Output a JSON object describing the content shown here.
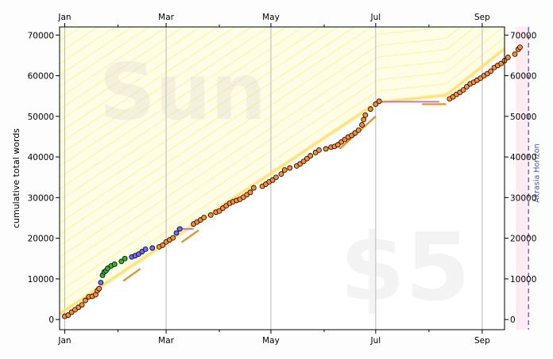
{
  "chart_data": {
    "type": "scatter",
    "ylabel": "cumulative total words",
    "xlabel": "",
    "ylim": [
      -2500,
      72000
    ],
    "x_day_range": [
      -3,
      256
    ],
    "month_ticks": [
      {
        "label": "Jan",
        "day": 0
      },
      {
        "label": "Mar",
        "day": 59
      },
      {
        "label": "May",
        "day": 120
      },
      {
        "label": "Jul",
        "day": 181
      },
      {
        "label": "Sep",
        "day": 243
      }
    ],
    "minor_month_days": [
      31,
      90,
      151,
      212
    ],
    "y_ticks": [
      0,
      10000,
      20000,
      30000,
      40000,
      50000,
      60000,
      70000
    ],
    "grid": "vertical-major",
    "watermark_goal": "Sun",
    "watermark_pledge": "$5",
    "horizon_label": "Akrasia Horizon",
    "horizon_day": 270,
    "today_day": 263,
    "road": [
      [
        0,
        2200
      ],
      [
        182,
        53400
      ],
      [
        222,
        55200
      ],
      [
        272,
        72000
      ]
    ],
    "datapoints": [
      [
        0,
        800
      ],
      [
        2,
        1100
      ],
      [
        4,
        1800
      ],
      [
        6,
        2400
      ],
      [
        8,
        3000
      ],
      [
        10,
        3600
      ],
      [
        12,
        4700
      ],
      [
        14,
        5600
      ],
      [
        16,
        5700
      ],
      [
        18,
        6100
      ],
      [
        19,
        7100
      ],
      [
        20,
        7600
      ],
      [
        21,
        9100
      ],
      [
        22,
        10900
      ],
      [
        23,
        11700
      ],
      [
        24,
        12000
      ],
      [
        25,
        12600
      ],
      [
        27,
        13200
      ],
      [
        29,
        13600
      ],
      [
        33,
        14300
      ],
      [
        35,
        15000
      ],
      [
        39,
        15400
      ],
      [
        41,
        15700
      ],
      [
        43,
        16100
      ],
      [
        45,
        16700
      ],
      [
        47,
        17300
      ],
      [
        51,
        17600
      ],
      [
        55,
        17900
      ],
      [
        57,
        18300
      ],
      [
        59,
        19100
      ],
      [
        61,
        19600
      ],
      [
        63,
        20100
      ],
      [
        65,
        21300
      ],
      [
        67,
        22300
      ],
      [
        75,
        23500
      ],
      [
        77,
        24000
      ],
      [
        79,
        24500
      ],
      [
        81,
        25100
      ],
      [
        85,
        25700
      ],
      [
        88,
        26400
      ],
      [
        90,
        26700
      ],
      [
        92,
        27400
      ],
      [
        94,
        28000
      ],
      [
        96,
        28600
      ],
      [
        98,
        29000
      ],
      [
        100,
        29300
      ],
      [
        102,
        29600
      ],
      [
        104,
        30100
      ],
      [
        106,
        30700
      ],
      [
        108,
        31300
      ],
      [
        110,
        32400
      ],
      [
        115,
        32800
      ],
      [
        117,
        33300
      ],
      [
        119,
        33900
      ],
      [
        121,
        34300
      ],
      [
        123,
        35000
      ],
      [
        126,
        35800
      ],
      [
        128,
        36800
      ],
      [
        131,
        37300
      ],
      [
        135,
        37800
      ],
      [
        137,
        38300
      ],
      [
        139,
        38900
      ],
      [
        141,
        39600
      ],
      [
        143,
        40300
      ],
      [
        146,
        41100
      ],
      [
        148,
        41700
      ],
      [
        152,
        42000
      ],
      [
        155,
        42400
      ],
      [
        157,
        42600
      ],
      [
        159,
        43000
      ],
      [
        161,
        43700
      ],
      [
        163,
        44300
      ],
      [
        165,
        44900
      ],
      [
        167,
        45300
      ],
      [
        169,
        45900
      ],
      [
        171,
        46600
      ],
      [
        173,
        47900
      ],
      [
        174,
        49200
      ],
      [
        175,
        50300
      ],
      [
        178,
        51800
      ],
      [
        181,
        53000
      ],
      [
        183,
        53700
      ],
      [
        224,
        54300
      ],
      [
        226,
        54800
      ],
      [
        228,
        55400
      ],
      [
        230,
        55900
      ],
      [
        232,
        56500
      ],
      [
        234,
        57300
      ],
      [
        236,
        58000
      ],
      [
        238,
        58400
      ],
      [
        240,
        58900
      ],
      [
        242,
        59400
      ],
      [
        244,
        60000
      ],
      [
        246,
        60500
      ],
      [
        248,
        61100
      ],
      [
        250,
        62000
      ],
      [
        252,
        62500
      ],
      [
        254,
        63000
      ],
      [
        256,
        63700
      ],
      [
        258,
        64500
      ],
      [
        262,
        65300
      ],
      [
        264,
        66500
      ],
      [
        265,
        67000
      ]
    ],
    "flat_segments": [
      {
        "x1": 65,
        "x2": 75,
        "y": 22300,
        "color": "#b070d0"
      },
      {
        "x1": 183,
        "x2": 218,
        "y": 53600,
        "color": "#b070d0"
      }
    ],
    "orange_segments": [
      [
        [
          34,
          9500
        ],
        [
          44,
          12500
        ]
      ],
      [
        [
          68,
          19000
        ],
        [
          78,
          22000
        ]
      ],
      [
        [
          160,
          42000
        ],
        [
          181,
          50000
        ]
      ],
      [
        [
          208,
          53000
        ],
        [
          222,
          53000
        ]
      ]
    ]
  },
  "colors": {
    "road": "#ffe066",
    "road_fill": "#fffbd0",
    "hatch": "#ffef7a",
    "dot_green": "#29b928",
    "dot_blue": "#6b6bff",
    "dot_orange": "#ff8c2a",
    "orange_line": "#f58a12",
    "horizon": "#6a6ae8",
    "today_band": "#fbe6ee"
  }
}
